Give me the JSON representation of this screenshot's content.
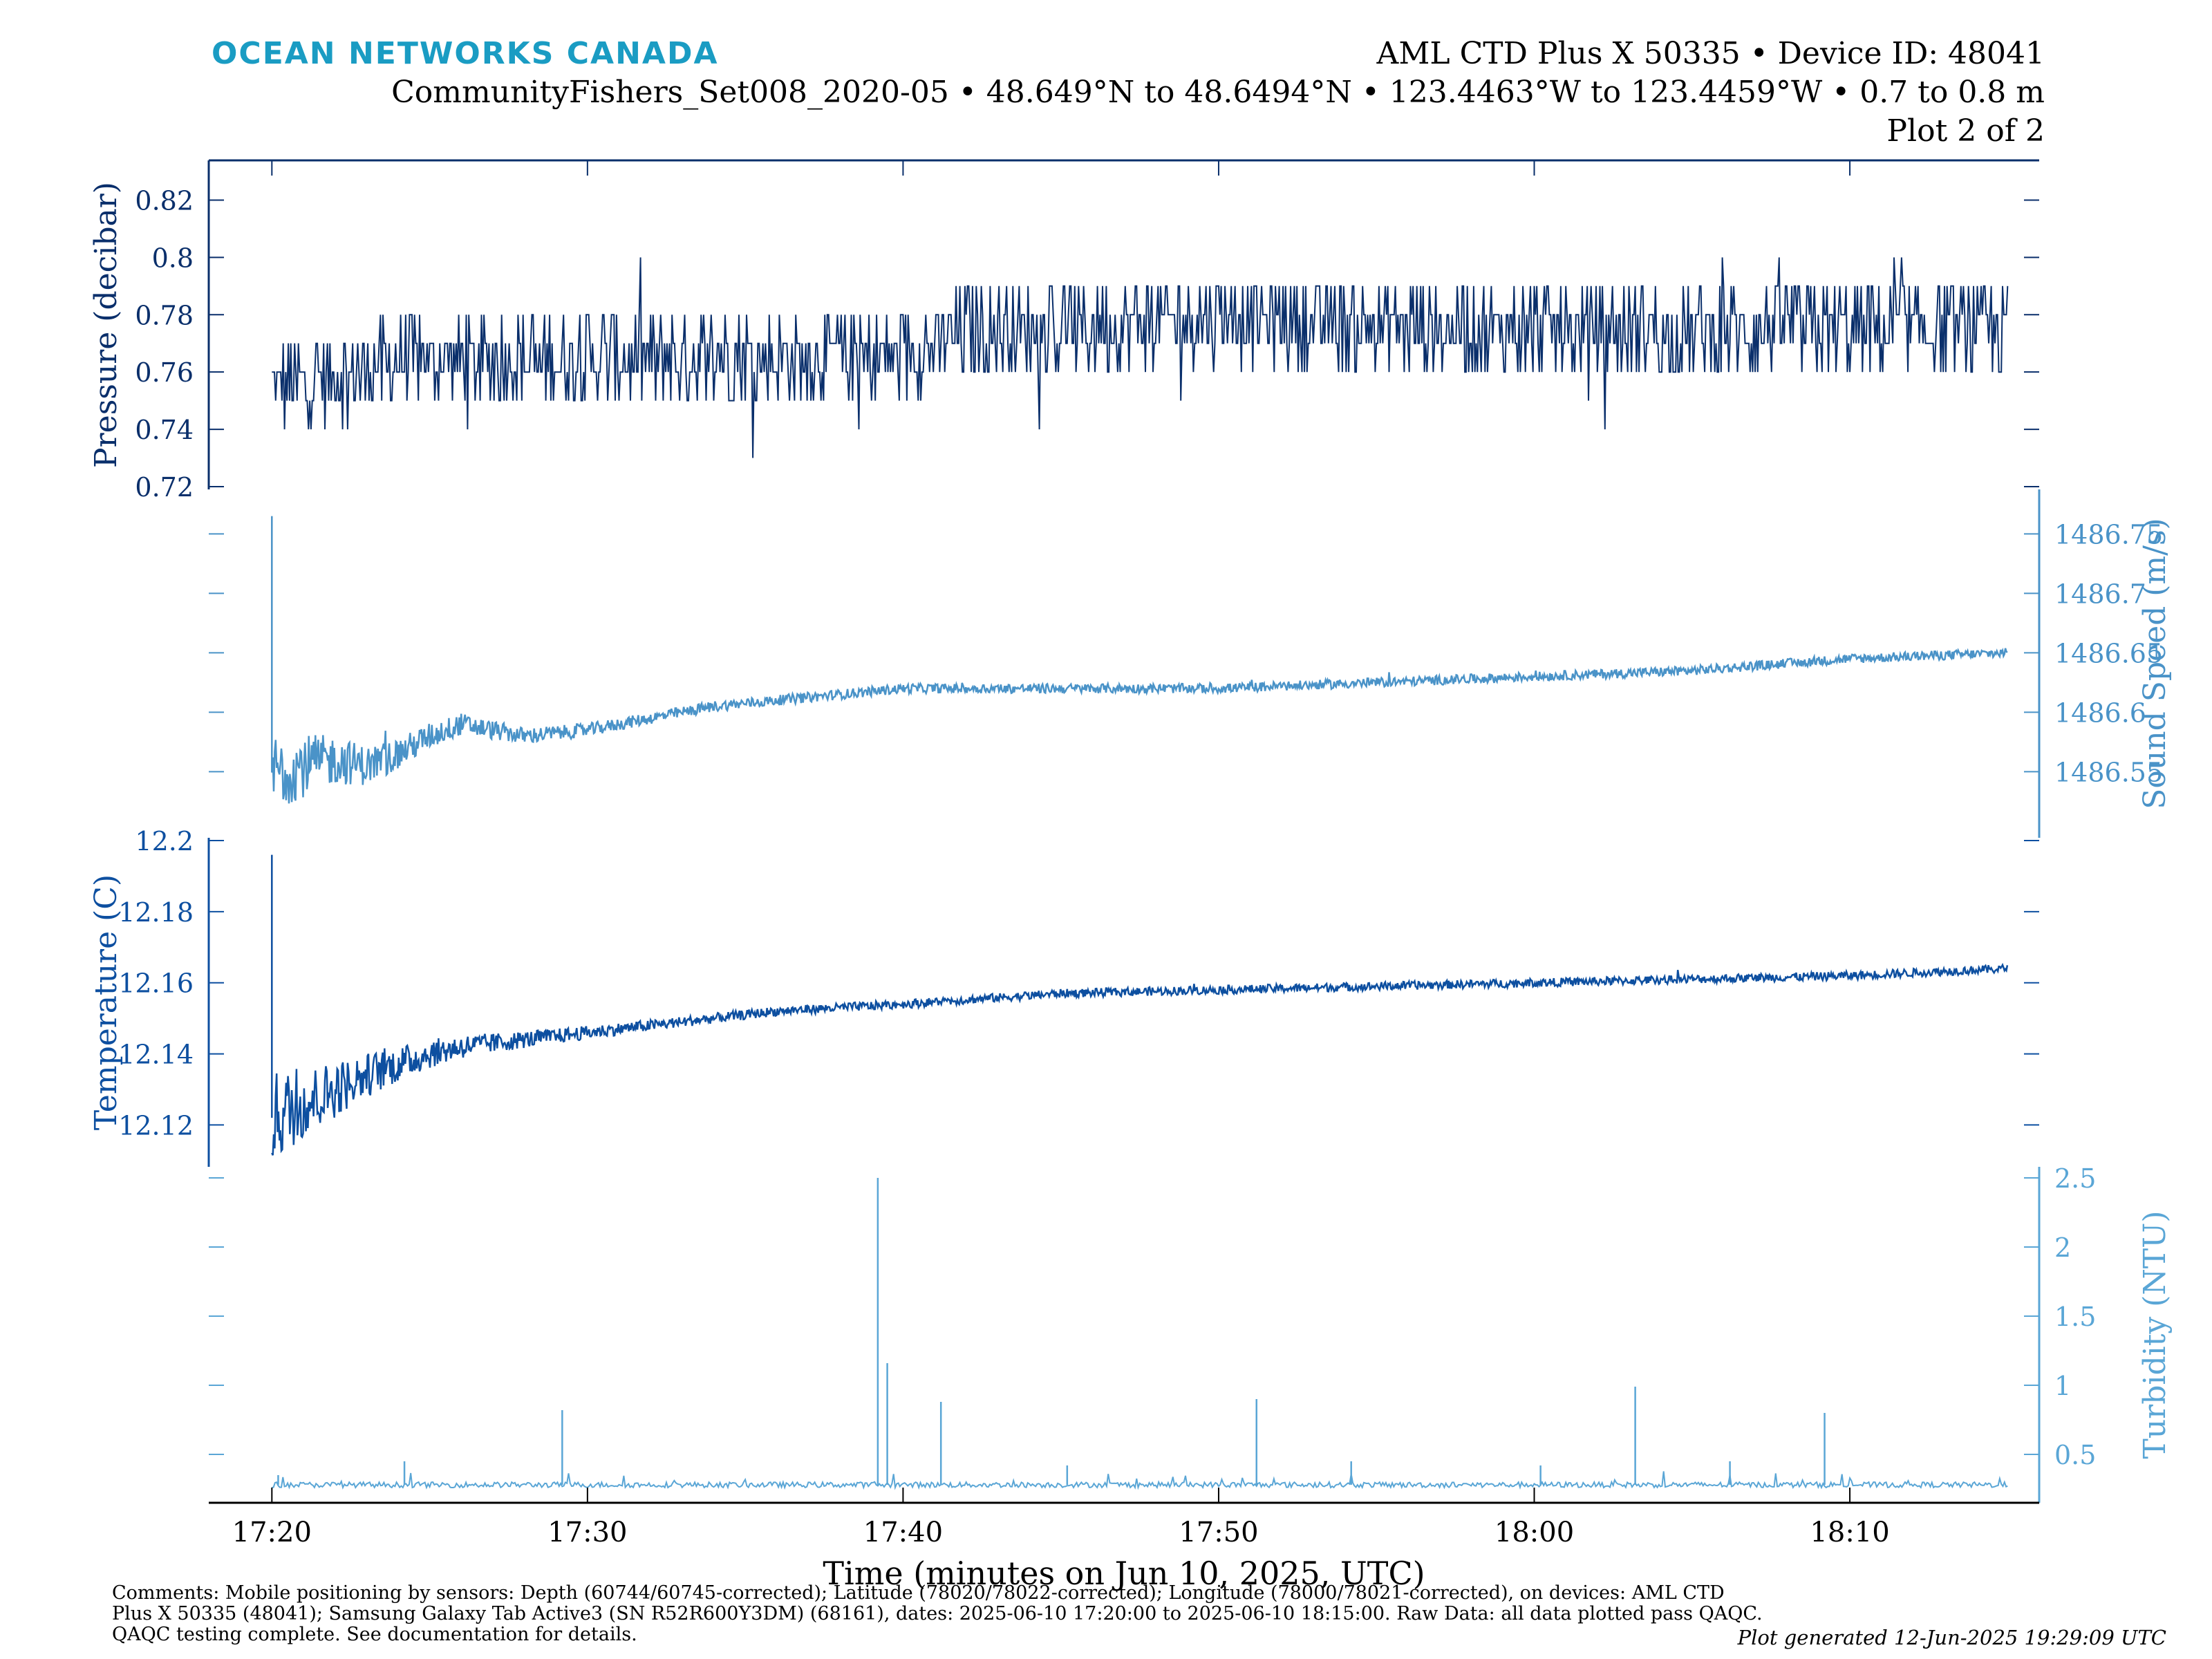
{
  "header": {
    "brand": "OCEAN NETWORKS CANADA",
    "line1": "AML CTD Plus X 50335 • Device ID: 48041",
    "line2": "CommunityFishers_Set008_2020-05 • 48.649°N to 48.6494°N • 123.4463°W to 123.4459°W • 0.7 to 0.8 m",
    "line3": "Plot 2 of 2"
  },
  "footer": {
    "comments_lines": [
      "Comments: Mobile positioning by sensors: Depth (60744/60745-corrected); Latitude (78020/78022-corrected); Longitude (78000/78021-corrected), on devices: AML CTD",
      "Plus X 50335 (48041); Samsung Galaxy Tab Active3 (SN R52R600Y3DM) (68161), dates: 2025-06-10 17:20:00 to 2025-06-10 18:15:00. Raw Data: all data plotted pass QAQC.",
      "QAQC testing complete. See documentation for details."
    ],
    "generated": "Plot generated 12-Jun-2025 19:29:09 UTC"
  },
  "colors": {
    "pressure": "#0a2f6b",
    "sound_speed": "#4a93c8",
    "temperature": "#0d4fa0",
    "turbidity": "#5aa6d6",
    "axis": "#0a2f6b"
  },
  "chart_data": {
    "type": "line",
    "xlabel": "Time (minutes on Jun 10, 2025, UTC)",
    "xlim": [
      "17:18",
      "18:16"
    ],
    "x_ticks": [
      "17:20",
      "17:30",
      "17:40",
      "17:50",
      "18:00",
      "18:10"
    ],
    "panels": [
      {
        "name": "Pressure (decibar)",
        "ylabel": "Pressure (decibar)",
        "axis_side": "left",
        "ylim": [
          0.72,
          0.83
        ],
        "yticks": [
          0.72,
          0.74,
          0.76,
          0.78,
          0.8,
          0.82
        ],
        "ytick_labels": [
          "0.72",
          "0.74",
          "0.76",
          "0.78",
          "0.8",
          "0.82"
        ],
        "series": [
          {
            "name": "Pressure (decibar)",
            "x": [
              "17:20",
              "17:23",
              "17:25",
              "17:30",
              "17:35",
              "17:40",
              "17:42",
              "17:45",
              "17:50",
              "17:55",
              "18:00",
              "18:05",
              "18:10",
              "18:15"
            ],
            "y": [
              0.755,
              0.76,
              0.765,
              0.765,
              0.765,
              0.765,
              0.775,
              0.775,
              0.78,
              0.775,
              0.775,
              0.775,
              0.775,
              0.775
            ],
            "noise_band": [
              0.73,
              0.83
            ]
          }
        ]
      },
      {
        "name": "Sound Speed (m/s)",
        "ylabel": "Sound Speed (m/s)",
        "axis_side": "right",
        "ylim": [
          1486.52,
          1486.77
        ],
        "yticks": [
          1486.55,
          1486.6,
          1486.65,
          1486.7,
          1486.75
        ],
        "ytick_labels": [
          "1486.55",
          "1486.6",
          "1486.65",
          "1486.7",
          "1486.75"
        ],
        "series": [
          {
            "name": "Sound Speed (m/s)",
            "x": [
              "17:20",
              "17:21",
              "17:22",
              "17:23",
              "17:24",
              "17:25",
              "17:26",
              "17:27",
              "17:28",
              "17:30",
              "17:32",
              "17:34",
              "17:36",
              "17:38",
              "17:40",
              "17:45",
              "17:50",
              "17:55",
              "18:00",
              "18:05",
              "18:10",
              "18:15"
            ],
            "y": [
              1486.55,
              1486.555,
              1486.56,
              1486.555,
              1486.565,
              1486.58,
              1486.59,
              1486.585,
              1486.58,
              1486.585,
              1486.595,
              1486.605,
              1486.61,
              1486.615,
              1486.62,
              1486.62,
              1486.62,
              1486.625,
              1486.63,
              1486.635,
              1486.645,
              1486.65
            ]
          }
        ]
      },
      {
        "name": "Temperature (C)",
        "ylabel": "Temperature (C)",
        "axis_side": "left",
        "ylim": [
          12.109,
          12.2
        ],
        "yticks": [
          12.12,
          12.14,
          12.16,
          12.18,
          12.2
        ],
        "ytick_labels": [
          "12.12",
          "12.14",
          "12.16",
          "12.18",
          "12.2"
        ],
        "series": [
          {
            "name": "Temperature (C)",
            "x": [
              "17:20",
              "17:21",
              "17:22",
              "17:23",
              "17:24",
              "17:25",
              "17:26",
              "17:28",
              "17:30",
              "17:33",
              "17:36",
              "17:40",
              "17:45",
              "17:50",
              "17:55",
              "18:00",
              "18:05",
              "18:10",
              "18:15"
            ],
            "y": [
              12.122,
              12.126,
              12.13,
              12.134,
              12.137,
              12.14,
              12.142,
              12.144,
              12.146,
              12.149,
              12.152,
              12.154,
              12.157,
              12.158,
              12.159,
              12.16,
              12.161,
              12.162,
              12.164
            ]
          }
        ]
      },
      {
        "name": "Turbidity (NTU)",
        "ylabel": "Turbidity (NTU)",
        "axis_side": "right",
        "ylim": [
          0.22,
          2.55
        ],
        "yticks": [
          0.5,
          1,
          1.5,
          2,
          2.5
        ],
        "ytick_labels": [
          "0.5",
          "1",
          "1.5",
          "2",
          "2.5"
        ],
        "series": [
          {
            "name": "Turbidity (NTU)",
            "baseline": 0.28,
            "spikes": [
              {
                "x": "17:20",
                "y": 0.35
              },
              {
                "x": "17:24",
                "y": 0.45
              },
              {
                "x": "17:29",
                "y": 0.82
              },
              {
                "x": "17:39",
                "y": 2.5
              },
              {
                "x": "17:39",
                "y": 1.16
              },
              {
                "x": "17:41",
                "y": 0.88
              },
              {
                "x": "17:45",
                "y": 0.42
              },
              {
                "x": "17:51",
                "y": 0.9
              },
              {
                "x": "17:54",
                "y": 0.45
              },
              {
                "x": "18:00",
                "y": 0.42
              },
              {
                "x": "18:03",
                "y": 0.99
              },
              {
                "x": "18:06",
                "y": 0.45
              },
              {
                "x": "18:09",
                "y": 0.8
              }
            ]
          }
        ]
      }
    ]
  }
}
